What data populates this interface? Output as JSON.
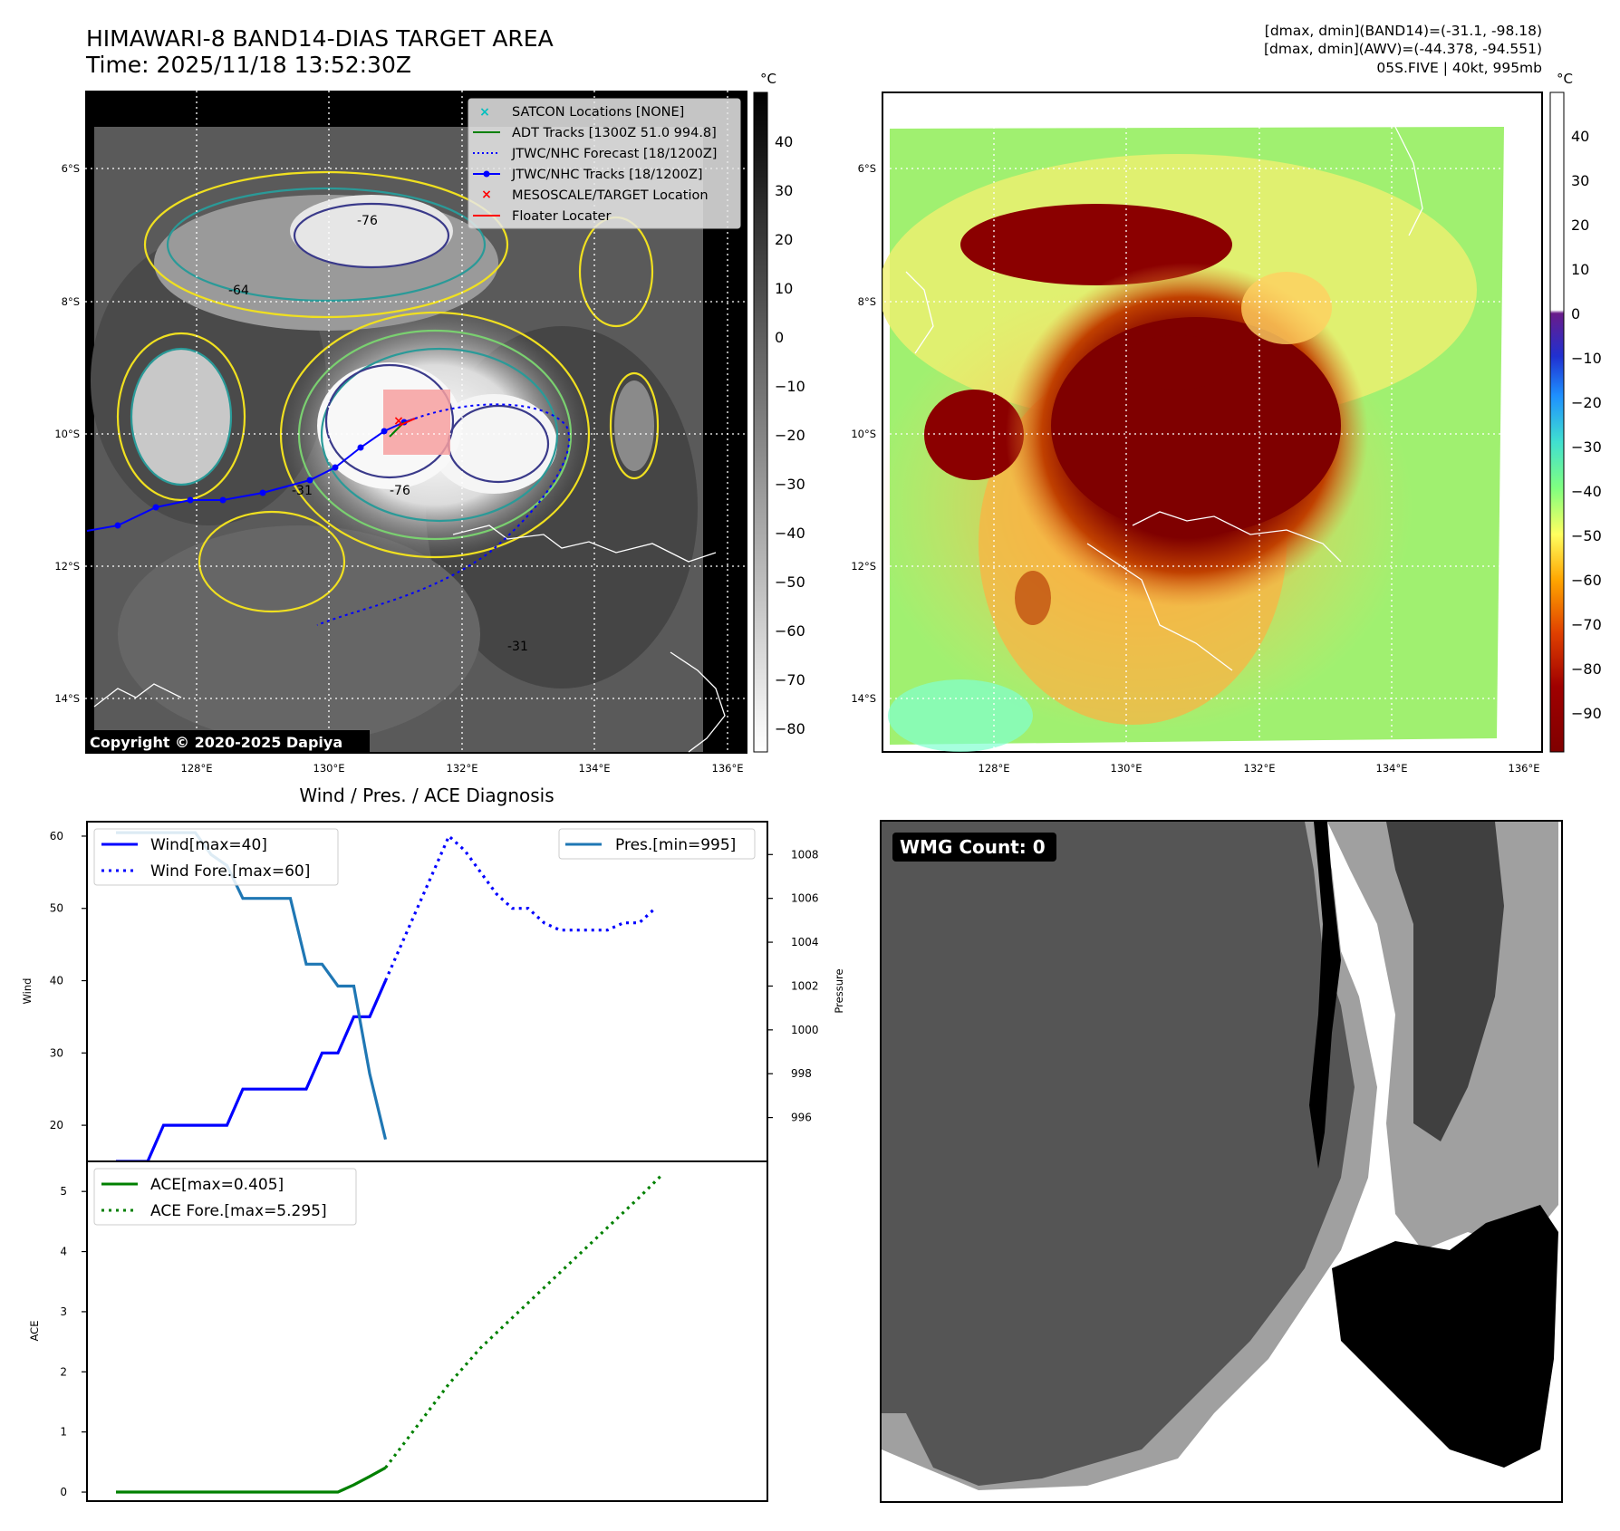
{
  "header": {
    "title_line1": "HIMAWARI-8 BAND14-DIAS TARGET AREA",
    "title_line2": "Time: 2025/11/18 13:52:30Z",
    "info_line1": "[dmax, dmin](BAND14)=(-31.1, -98.18)",
    "info_line2": "[dmax, dmin](AWV)=(-44.378, -94.551)",
    "info_line3": "05S.FIVE | 40kt, 995mb"
  },
  "ir_panel": {
    "lat_labels": [
      "6°S",
      "8°S",
      "10°S",
      "12°S",
      "14°S"
    ],
    "lon_labels": [
      "128°E",
      "130°E",
      "132°E",
      "134°E",
      "136°E"
    ],
    "copyright": "Copyright © 2020-2025 Dapiya",
    "legend": [
      {
        "label": "SATCON Locations [NONE]",
        "color": "#00bfbf"
      },
      {
        "label": "ADT Tracks [1300Z 51.0 994.8]",
        "color": "#008000"
      },
      {
        "label": "JTWC/NHC Forecast [18/1200Z]",
        "color": "#0000ff"
      },
      {
        "label": "JTWC/NHC Tracks [18/1200Z]",
        "color": "#0000ff"
      },
      {
        "label": "MESOSCALE/TARGET Location",
        "color": "#ff0000"
      },
      {
        "label": "Floater Locater",
        "color": "#ff0000"
      }
    ],
    "colorbar": {
      "unit": "°C",
      "ticks": [
        "40",
        "30",
        "20",
        "10",
        "0",
        "−10",
        "−20",
        "−30",
        "−40",
        "−50",
        "−60",
        "−70",
        "−80"
      ]
    },
    "contour_labels": [
      "-76",
      "-64",
      "-31",
      "-76",
      "-31"
    ]
  },
  "awv_panel": {
    "lat_labels": [
      "6°S",
      "8°S",
      "10°S",
      "12°S",
      "14°S"
    ],
    "lon_labels": [
      "128°E",
      "130°E",
      "132°E",
      "134°E",
      "136°E"
    ],
    "colorbar": {
      "unit": "°C",
      "ticks": [
        "40",
        "30",
        "20",
        "10",
        "0",
        "−10",
        "−20",
        "−30",
        "−40",
        "−50",
        "−60",
        "−70",
        "−80",
        "−90"
      ]
    }
  },
  "wmg_panel": {
    "label": "WMG Count: 0"
  },
  "colors": {
    "wind": "#0000ff",
    "pressure": "#1f77b4",
    "ace": "#008000",
    "track": "#0000ff",
    "target_box": "#f7a0a0"
  },
  "chart_data": [
    {
      "type": "line",
      "title": "Wind / Pres. / ACE Diagnosis",
      "ylabel": "Wind",
      "y2label": "Pressure",
      "ylim": [
        15,
        62
      ],
      "y2lim": [
        994.0,
        1009.5
      ],
      "yticks": [
        "60",
        "50",
        "40",
        "30",
        "20"
      ],
      "y2ticks": [
        "1008",
        "1006",
        "1004",
        "1002",
        "1000",
        "998",
        "996"
      ],
      "legend_left": [
        "Wind[max=40]",
        "Wind Fore.[max=60]"
      ],
      "legend_right": [
        "Pres.[min=995]"
      ],
      "series": [
        {
          "name": "Wind[max=40]",
          "style": "solid",
          "axis": "left",
          "x": [
            0,
            2,
            3,
            7,
            8,
            12,
            13,
            14,
            15,
            16,
            17
          ],
          "y": [
            15,
            15,
            20,
            20,
            25,
            25,
            30,
            30,
            35,
            35,
            40
          ]
        },
        {
          "name": "Wind Fore.[max=60]",
          "style": "dotted",
          "axis": "left",
          "x": [
            17,
            19,
            20,
            21,
            22,
            23,
            24,
            25,
            26,
            27,
            28,
            29,
            30,
            31,
            32,
            33,
            34
          ],
          "y": [
            40,
            50,
            55,
            60,
            58,
            55,
            52,
            50,
            50,
            48,
            47,
            47,
            47,
            47,
            48,
            48,
            50
          ]
        },
        {
          "name": "Pres.[min=995]",
          "style": "solid",
          "axis": "right",
          "x": [
            0,
            5,
            6,
            7,
            8,
            10,
            11,
            12,
            13,
            14,
            15,
            16,
            17
          ],
          "y": [
            1009,
            1009,
            1008,
            1007.5,
            1006,
            1006,
            1006,
            1003,
            1003,
            1002,
            1002,
            998,
            995
          ]
        }
      ]
    },
    {
      "type": "line",
      "ylabel": "ACE",
      "ylim": [
        -0.15,
        5.5
      ],
      "yticks": [
        "5",
        "4",
        "3",
        "2",
        "1",
        "0"
      ],
      "legend": [
        "ACE[max=0.405]",
        "ACE Fore.[max=5.295]"
      ],
      "series": [
        {
          "name": "ACE[max=0.405]",
          "style": "solid",
          "x": [
            0,
            14,
            15,
            16,
            17
          ],
          "y": [
            0,
            0,
            0.12,
            0.26,
            0.405
          ]
        },
        {
          "name": "ACE Fore.[max=5.295]",
          "style": "dotted",
          "x": [
            17,
            19,
            21,
            23,
            25,
            27,
            29,
            31,
            33,
            34.5
          ],
          "y": [
            0.405,
            1.1,
            1.8,
            2.4,
            2.9,
            3.4,
            3.9,
            4.4,
            4.9,
            5.295
          ]
        }
      ]
    }
  ]
}
